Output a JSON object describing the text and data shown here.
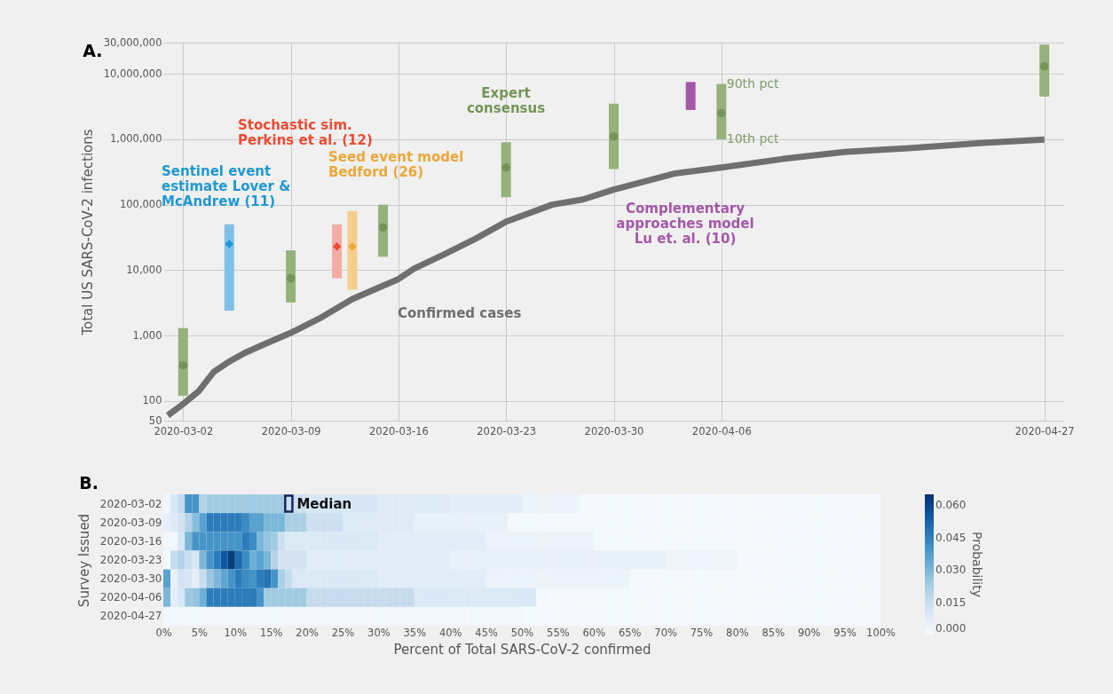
{
  "chart_data": [
    {
      "type": "line",
      "title": "A.",
      "ylabel": "Total US SARS-CoV-2 infections",
      "xlim": [
        "2020-03-01",
        "2020-04-28"
      ],
      "xticks": [
        "2020-03-02",
        "2020-03-09",
        "2020-03-16",
        "2020-03-23",
        "2020-03-30",
        "2020-04-06",
        "2020-04-27"
      ],
      "ylim": [
        50,
        30000000
      ],
      "yticks": [
        {
          "value": 50,
          "label": "50"
        },
        {
          "value": 100,
          "label": "100"
        },
        {
          "value": 1000,
          "label": "1,000"
        },
        {
          "value": 10000,
          "label": "10,000"
        },
        {
          "value": 100000,
          "label": "100,000"
        },
        {
          "value": 1000000,
          "label": "1,000,000"
        },
        {
          "value": 10000000,
          "label": "10,000,000"
        },
        {
          "value": 30000000,
          "label": "30,000,000"
        }
      ],
      "log": true,
      "grid": true,
      "annotations": [
        {
          "text": "90th pct",
          "x": "2020-04-06",
          "y": 7000000
        },
        {
          "text": "10th pct",
          "x": "2020-04-06",
          "y": 1000000
        }
      ],
      "series": [
        {
          "type": "bar",
          "color": "#95b17c",
          "x": [
            "2020-03-02",
            "2020-03-09",
            "2020-03-15",
            "2020-03-23",
            "2020-03-30",
            "2020-04-06",
            "2020-04-27"
          ],
          "base": [
            120,
            3200,
            16000,
            130000,
            350000,
            1000000,
            4500000
          ],
          "values": [
            1180,
            16800,
            84000,
            770000,
            3150000,
            6000000,
            23500000
          ]
        },
        {
          "type": "scatter",
          "name": "Expert consensus",
          "marker": "circle",
          "color": "#739557",
          "x": [
            "2020-03-02",
            "2020-03-09",
            "2020-03-15",
            "2020-03-23",
            "2020-03-30",
            "2020-04-06",
            "2020-04-27"
          ],
          "values": [
            350,
            7500,
            45000,
            370000,
            1100000,
            2500000,
            13000000
          ]
        },
        {
          "type": "bar",
          "color": "#80c0e8",
          "x": [
            "2020-03-05"
          ],
          "base": [
            2400
          ],
          "values": [
            47600
          ]
        },
        {
          "type": "scatter",
          "name": "Sentinel event estimate Lover & McAndrew (11)",
          "marker": "diamond",
          "color": "#1f98d4",
          "x": [
            "2020-03-05"
          ],
          "values": [
            25000
          ]
        },
        {
          "type": "bar",
          "color": "#f4aca4",
          "x": [
            "2020-03-12"
          ],
          "base": [
            7500
          ],
          "values": [
            42500
          ]
        },
        {
          "type": "scatter",
          "name": "Stochastic sim. Perkins et al. (12)",
          "marker": "diamond",
          "color": "#ec4b34",
          "x": [
            "2020-03-12"
          ],
          "values": [
            23000
          ]
        },
        {
          "type": "bar",
          "color": "#f5cd8c",
          "x": [
            "2020-03-13"
          ],
          "base": [
            5000
          ],
          "values": [
            75000
          ]
        },
        {
          "type": "scatter",
          "name": "Seed event model Bedford (26)",
          "marker": "diamond",
          "color": "#eba83a",
          "x": [
            "2020-03-13"
          ],
          "values": [
            23000
          ]
        },
        {
          "type": "bar",
          "name": "Complementary approaches model Lu et. al. (10)",
          "color": "#a558a8",
          "x": [
            "2020-04-04"
          ],
          "base": [
            2800000
          ],
          "values": [
            4700000
          ]
        },
        {
          "type": "line",
          "name": "Confirmed cases",
          "color": "#6f6f6f",
          "x": [
            "2020-03-01",
            "2020-03-02",
            "2020-03-03",
            "2020-03-04",
            "2020-03-05",
            "2020-03-06",
            "2020-03-07",
            "2020-03-09",
            "2020-03-11",
            "2020-03-13",
            "2020-03-16",
            "2020-03-17",
            "2020-03-19",
            "2020-03-21",
            "2020-03-23",
            "2020-03-26",
            "2020-03-28",
            "2020-03-30",
            "2020-04-03",
            "2020-04-06",
            "2020-04-10",
            "2020-04-14",
            "2020-04-19",
            "2020-04-23",
            "2020-04-27"
          ],
          "values": [
            60,
            90,
            140,
            280,
            400,
            540,
            690,
            1100,
            1900,
            3600,
            7300,
            10500,
            17500,
            30000,
            55000,
            100000,
            120000,
            170000,
            300000,
            370000,
            500000,
            640000,
            750000,
            880000,
            990000
          ]
        }
      ]
    },
    {
      "type": "heatmap",
      "title": "B.",
      "xlabel": "Percent of Total SARS-CoV-2 confirmed",
      "ylabel": "Survey Issued",
      "clabel": "Probability",
      "xlim": [
        0,
        100
      ],
      "xticks": [
        {
          "value": 0,
          "label": "0%"
        },
        {
          "value": 5,
          "label": "5%"
        },
        {
          "value": 10,
          "label": "10%"
        },
        {
          "value": 15,
          "label": "15%"
        },
        {
          "value": 20,
          "label": "20%"
        },
        {
          "value": 25,
          "label": "25%"
        },
        {
          "value": 30,
          "label": "30%"
        },
        {
          "value": 35,
          "label": "35%"
        },
        {
          "value": 40,
          "label": "40%"
        },
        {
          "value": 45,
          "label": "45%"
        },
        {
          "value": 50,
          "label": "50%"
        },
        {
          "value": 55,
          "label": "55%"
        },
        {
          "value": 60,
          "label": "60%"
        },
        {
          "value": 65,
          "label": "65%"
        },
        {
          "value": 70,
          "label": "70%"
        },
        {
          "value": 75,
          "label": "75%"
        },
        {
          "value": 80,
          "label": "80%"
        },
        {
          "value": 85,
          "label": "85%"
        },
        {
          "value": 90,
          "label": "90%"
        },
        {
          "value": 95,
          "label": "95%"
        },
        {
          "value": 100,
          "label": "100%"
        }
      ],
      "x": [
        0.5,
        1.5,
        2.5,
        3.5,
        4.5,
        5.5,
        6.5,
        7.5,
        8.5,
        9.5,
        10.5,
        11.5,
        12.5,
        13.5,
        14.5,
        15.5,
        16.5,
        17.5,
        18.5,
        19.5,
        20.5,
        21.5,
        22.5,
        23.5,
        24.5,
        25.5,
        26.5,
        27.5,
        28.5,
        29.5,
        30.5,
        31.5,
        32.5,
        33.5,
        34.5,
        35.5,
        36.5,
        37.5,
        38.5,
        39.5,
        40.5,
        41.5,
        42.5,
        43.5,
        44.5,
        45.5,
        46.5,
        47.5,
        48.5,
        49.5,
        50.5,
        51.5,
        52.5,
        53.5,
        54.5,
        55.5,
        56.5,
        57.5,
        58.5,
        59.5,
        60.5,
        61.5,
        62.5,
        63.5,
        64.5,
        65.5,
        66.5,
        67.5,
        68.5,
        69.5,
        70.5,
        71.5,
        72.5,
        73.5,
        74.5,
        75.5,
        76.5,
        77.5,
        78.5,
        79.5,
        80.5,
        81.5,
        82.5,
        83.5,
        84.5,
        85.5,
        86.5,
        87.5,
        88.5,
        89.5,
        90.5,
        91.5,
        92.5,
        93.5,
        94.5,
        95.5,
        96.5,
        97.5,
        98.5,
        99.5
      ],
      "y_categories": [
        "2020-03-02",
        "2020-03-09",
        "2020-03-16",
        "2020-03-23",
        "2020-03-30",
        "2020-04-06",
        "2020-04-27"
      ],
      "clim": [
        0,
        0.065
      ],
      "cticks": [
        {
          "value": 0,
          "label": "0.000"
        },
        {
          "value": 0.015,
          "label": "0.015"
        },
        {
          "value": 0.03,
          "label": "0.030"
        },
        {
          "value": 0.045,
          "label": "0.045"
        },
        {
          "value": 0.06,
          "label": "0.060"
        }
      ],
      "cells": [
        [
          0.002,
          0.01,
          0.016,
          0.04,
          0.04,
          0.02,
          0.024,
          0.024,
          0.024,
          0.024,
          0.024,
          0.024,
          0.024,
          0.024,
          0.024,
          0.024,
          0.024,
          0.014,
          0.014,
          0.014,
          0.01,
          0.01,
          0.01,
          0.01,
          0.01,
          0.01,
          0.01,
          0.01,
          0.01,
          0.01,
          0.008,
          0.008,
          0.008,
          0.008,
          0.008,
          0.008,
          0.008,
          0.008,
          0.008,
          0.008,
          0.007,
          0.007,
          0.007,
          0.007,
          0.007,
          0.007,
          0.007,
          0.007,
          0.007,
          0.007,
          0.004,
          0.004,
          0.004,
          0.004,
          0.004,
          0.004,
          0.004,
          0.004,
          0.001,
          0.001,
          0.001,
          0.001,
          0.001,
          0.001,
          0.001,
          0.001,
          0.001,
          0.001,
          0.001,
          0.001,
          0.001,
          0.001,
          0.001,
          0.001,
          0.001,
          0.001,
          0.001,
          0.001,
          0.001,
          0.001,
          0.001,
          0.001,
          0.001,
          0.001,
          0.001,
          0.001,
          0.001,
          0.001,
          0.001,
          0.001,
          0.001,
          0.001,
          0.001,
          0.001,
          0.001,
          0.001,
          0.001,
          0.001,
          0.001,
          0.001
        ],
        [
          0.006,
          0.008,
          0.012,
          0.02,
          0.028,
          0.036,
          0.046,
          0.046,
          0.046,
          0.046,
          0.046,
          0.042,
          0.036,
          0.036,
          0.03,
          0.03,
          0.03,
          0.022,
          0.022,
          0.022,
          0.014,
          0.014,
          0.014,
          0.014,
          0.014,
          0.008,
          0.008,
          0.008,
          0.008,
          0.008,
          0.008,
          0.008,
          0.008,
          0.008,
          0.008,
          0.005,
          0.005,
          0.005,
          0.005,
          0.005,
          0.005,
          0.005,
          0.005,
          0.005,
          0.005,
          0.005,
          0.005,
          0.005,
          0.001,
          0.001,
          0.001,
          0.001,
          0.001,
          0.001,
          0.001,
          0.001,
          0.001,
          0.001,
          0.001,
          0.001,
          0.001,
          0.001,
          0.001,
          0.001,
          0.001,
          0.001,
          0.001,
          0.001,
          0.001,
          0.001,
          0.001,
          0.001,
          0.001,
          0.001,
          0.001,
          0.001,
          0.001,
          0.001,
          0.001,
          0.001,
          0.001,
          0.001,
          0.001,
          0.001,
          0.001,
          0.001,
          0.001,
          0.001,
          0.001,
          0.001,
          0.001,
          0.001,
          0.001,
          0.001,
          0.001,
          0.001,
          0.001,
          0.001,
          0.001,
          0.001
        ],
        [
          0.002,
          0.002,
          0.01,
          0.03,
          0.04,
          0.04,
          0.04,
          0.04,
          0.04,
          0.04,
          0.04,
          0.046,
          0.042,
          0.03,
          0.026,
          0.024,
          0.014,
          0.009,
          0.009,
          0.009,
          0.009,
          0.009,
          0.009,
          0.009,
          0.009,
          0.009,
          0.009,
          0.009,
          0.009,
          0.009,
          0.007,
          0.007,
          0.007,
          0.007,
          0.007,
          0.007,
          0.007,
          0.007,
          0.007,
          0.007,
          0.007,
          0.007,
          0.007,
          0.007,
          0.007,
          0.004,
          0.004,
          0.004,
          0.004,
          0.004,
          0.004,
          0.004,
          0.004,
          0.004,
          0.004,
          0.004,
          0.004,
          0.004,
          0.004,
          0.004,
          0.001,
          0.001,
          0.001,
          0.001,
          0.001,
          0.001,
          0.001,
          0.001,
          0.001,
          0.001,
          0.001,
          0.001,
          0.001,
          0.001,
          0.001,
          0.001,
          0.001,
          0.001,
          0.001,
          0.001,
          0.001,
          0.001,
          0.001,
          0.001,
          0.001,
          0.001,
          0.001,
          0.001,
          0.001,
          0.001,
          0.001,
          0.001,
          0.001,
          0.001,
          0.001,
          0.001,
          0.001,
          0.001,
          0.001,
          0.001
        ],
        [
          0.001,
          0.016,
          0.02,
          0.015,
          0.01,
          0.03,
          0.04,
          0.046,
          0.055,
          0.062,
          0.05,
          0.042,
          0.032,
          0.036,
          0.03,
          0.02,
          0.012,
          0.012,
          0.012,
          0.012,
          0.007,
          0.007,
          0.007,
          0.007,
          0.007,
          0.007,
          0.007,
          0.007,
          0.007,
          0.007,
          0.007,
          0.007,
          0.007,
          0.007,
          0.007,
          0.007,
          0.007,
          0.007,
          0.007,
          0.007,
          0.005,
          0.005,
          0.005,
          0.005,
          0.005,
          0.005,
          0.005,
          0.005,
          0.005,
          0.005,
          0.005,
          0.005,
          0.005,
          0.005,
          0.005,
          0.005,
          0.005,
          0.005,
          0.005,
          0.005,
          0.005,
          0.005,
          0.005,
          0.005,
          0.005,
          0.005,
          0.005,
          0.005,
          0.005,
          0.005,
          0.003,
          0.003,
          0.003,
          0.003,
          0.003,
          0.003,
          0.003,
          0.003,
          0.003,
          0.003,
          0.001,
          0.001,
          0.001,
          0.001,
          0.001,
          0.001,
          0.001,
          0.001,
          0.001,
          0.001,
          0.001,
          0.001,
          0.001,
          0.001,
          0.001,
          0.001,
          0.001,
          0.001,
          0.001,
          0.001
        ],
        [
          0.036,
          0.005,
          0.012,
          0.01,
          0.006,
          0.015,
          0.025,
          0.03,
          0.035,
          0.04,
          0.046,
          0.042,
          0.04,
          0.046,
          0.048,
          0.04,
          0.022,
          0.016,
          0.009,
          0.009,
          0.009,
          0.009,
          0.009,
          0.009,
          0.009,
          0.009,
          0.009,
          0.009,
          0.009,
          0.009,
          0.007,
          0.007,
          0.007,
          0.007,
          0.007,
          0.007,
          0.007,
          0.007,
          0.007,
          0.007,
          0.007,
          0.007,
          0.007,
          0.007,
          0.007,
          0.004,
          0.004,
          0.004,
          0.004,
          0.004,
          0.004,
          0.004,
          0.004,
          0.004,
          0.004,
          0.004,
          0.004,
          0.004,
          0.004,
          0.004,
          0.004,
          0.004,
          0.004,
          0.004,
          0.004,
          0.001,
          0.001,
          0.001,
          0.001,
          0.001,
          0.001,
          0.001,
          0.001,
          0.001,
          0.001,
          0.001,
          0.001,
          0.001,
          0.001,
          0.001,
          0.001,
          0.001,
          0.001,
          0.001,
          0.001,
          0.001,
          0.001,
          0.001,
          0.001,
          0.001,
          0.001,
          0.001,
          0.001,
          0.001,
          0.001,
          0.001,
          0.001,
          0.001,
          0.001,
          0.001
        ],
        [
          0.03,
          0.006,
          0.01,
          0.025,
          0.026,
          0.032,
          0.046,
          0.046,
          0.046,
          0.046,
          0.046,
          0.046,
          0.046,
          0.04,
          0.024,
          0.024,
          0.024,
          0.024,
          0.024,
          0.024,
          0.016,
          0.016,
          0.016,
          0.016,
          0.016,
          0.016,
          0.016,
          0.016,
          0.016,
          0.016,
          0.016,
          0.016,
          0.016,
          0.016,
          0.016,
          0.009,
          0.009,
          0.009,
          0.009,
          0.009,
          0.009,
          0.009,
          0.009,
          0.009,
          0.009,
          0.009,
          0.009,
          0.009,
          0.009,
          0.009,
          0.009,
          0.009,
          0.001,
          0.001,
          0.001,
          0.001,
          0.001,
          0.001,
          0.001,
          0.001,
          0.001,
          0.001,
          0.001,
          0.001,
          0.001,
          0.001,
          0.001,
          0.001,
          0.001,
          0.001,
          0.001,
          0.001,
          0.001,
          0.001,
          0.001,
          0.001,
          0.001,
          0.001,
          0.001,
          0.001,
          0.001,
          0.001,
          0.001,
          0.001,
          0.001,
          0.001,
          0.001,
          0.001,
          0.001,
          0.001,
          0.001,
          0.001,
          0.001,
          0.001,
          0.001,
          0.001,
          0.001,
          0.001,
          0.001,
          0.001
        ],
        [
          0.002,
          0.002,
          0.002,
          0.002,
          0.002,
          0.002,
          0.002,
          0.002,
          0.002,
          0.002,
          0.002,
          0.002,
          0.002,
          0.002,
          0.002,
          0.002,
          0.002,
          0.002,
          0.002,
          0.002,
          0.002,
          0.002,
          0.002,
          0.002,
          0.002,
          0.002,
          0.002,
          0.002,
          0.002,
          0.002,
          0.002,
          0.002,
          0.002,
          0.002,
          0.002,
          0.002,
          0.002,
          0.002,
          0.002,
          0.002,
          0.002,
          0.002,
          0.002,
          0.002,
          0.002,
          0.002,
          0.002,
          0.002,
          0.002,
          0.002,
          0.001,
          0.001,
          0.001,
          0.001,
          0.001,
          0.001,
          0.001,
          0.001,
          0.001,
          0.001,
          0.001,
          0.001,
          0.001,
          0.001,
          0.001,
          0.001,
          0.001,
          0.001,
          0.001,
          0.001,
          0.001,
          0.001,
          0.001,
          0.001,
          0.001,
          0.001,
          0.001,
          0.001,
          0.001,
          0.001,
          0.001,
          0.001,
          0.001,
          0.001,
          0.001,
          0.001,
          0.001,
          0.001,
          0.001,
          0.001,
          0.001,
          0.001,
          0.001,
          0.001,
          0.001,
          0.001,
          0.001,
          0.001,
          0.001,
          0.001
        ]
      ],
      "annotations": [
        {
          "text": "Median",
          "x": 17.5,
          "y": "2020-03-02"
        }
      ]
    }
  ]
}
